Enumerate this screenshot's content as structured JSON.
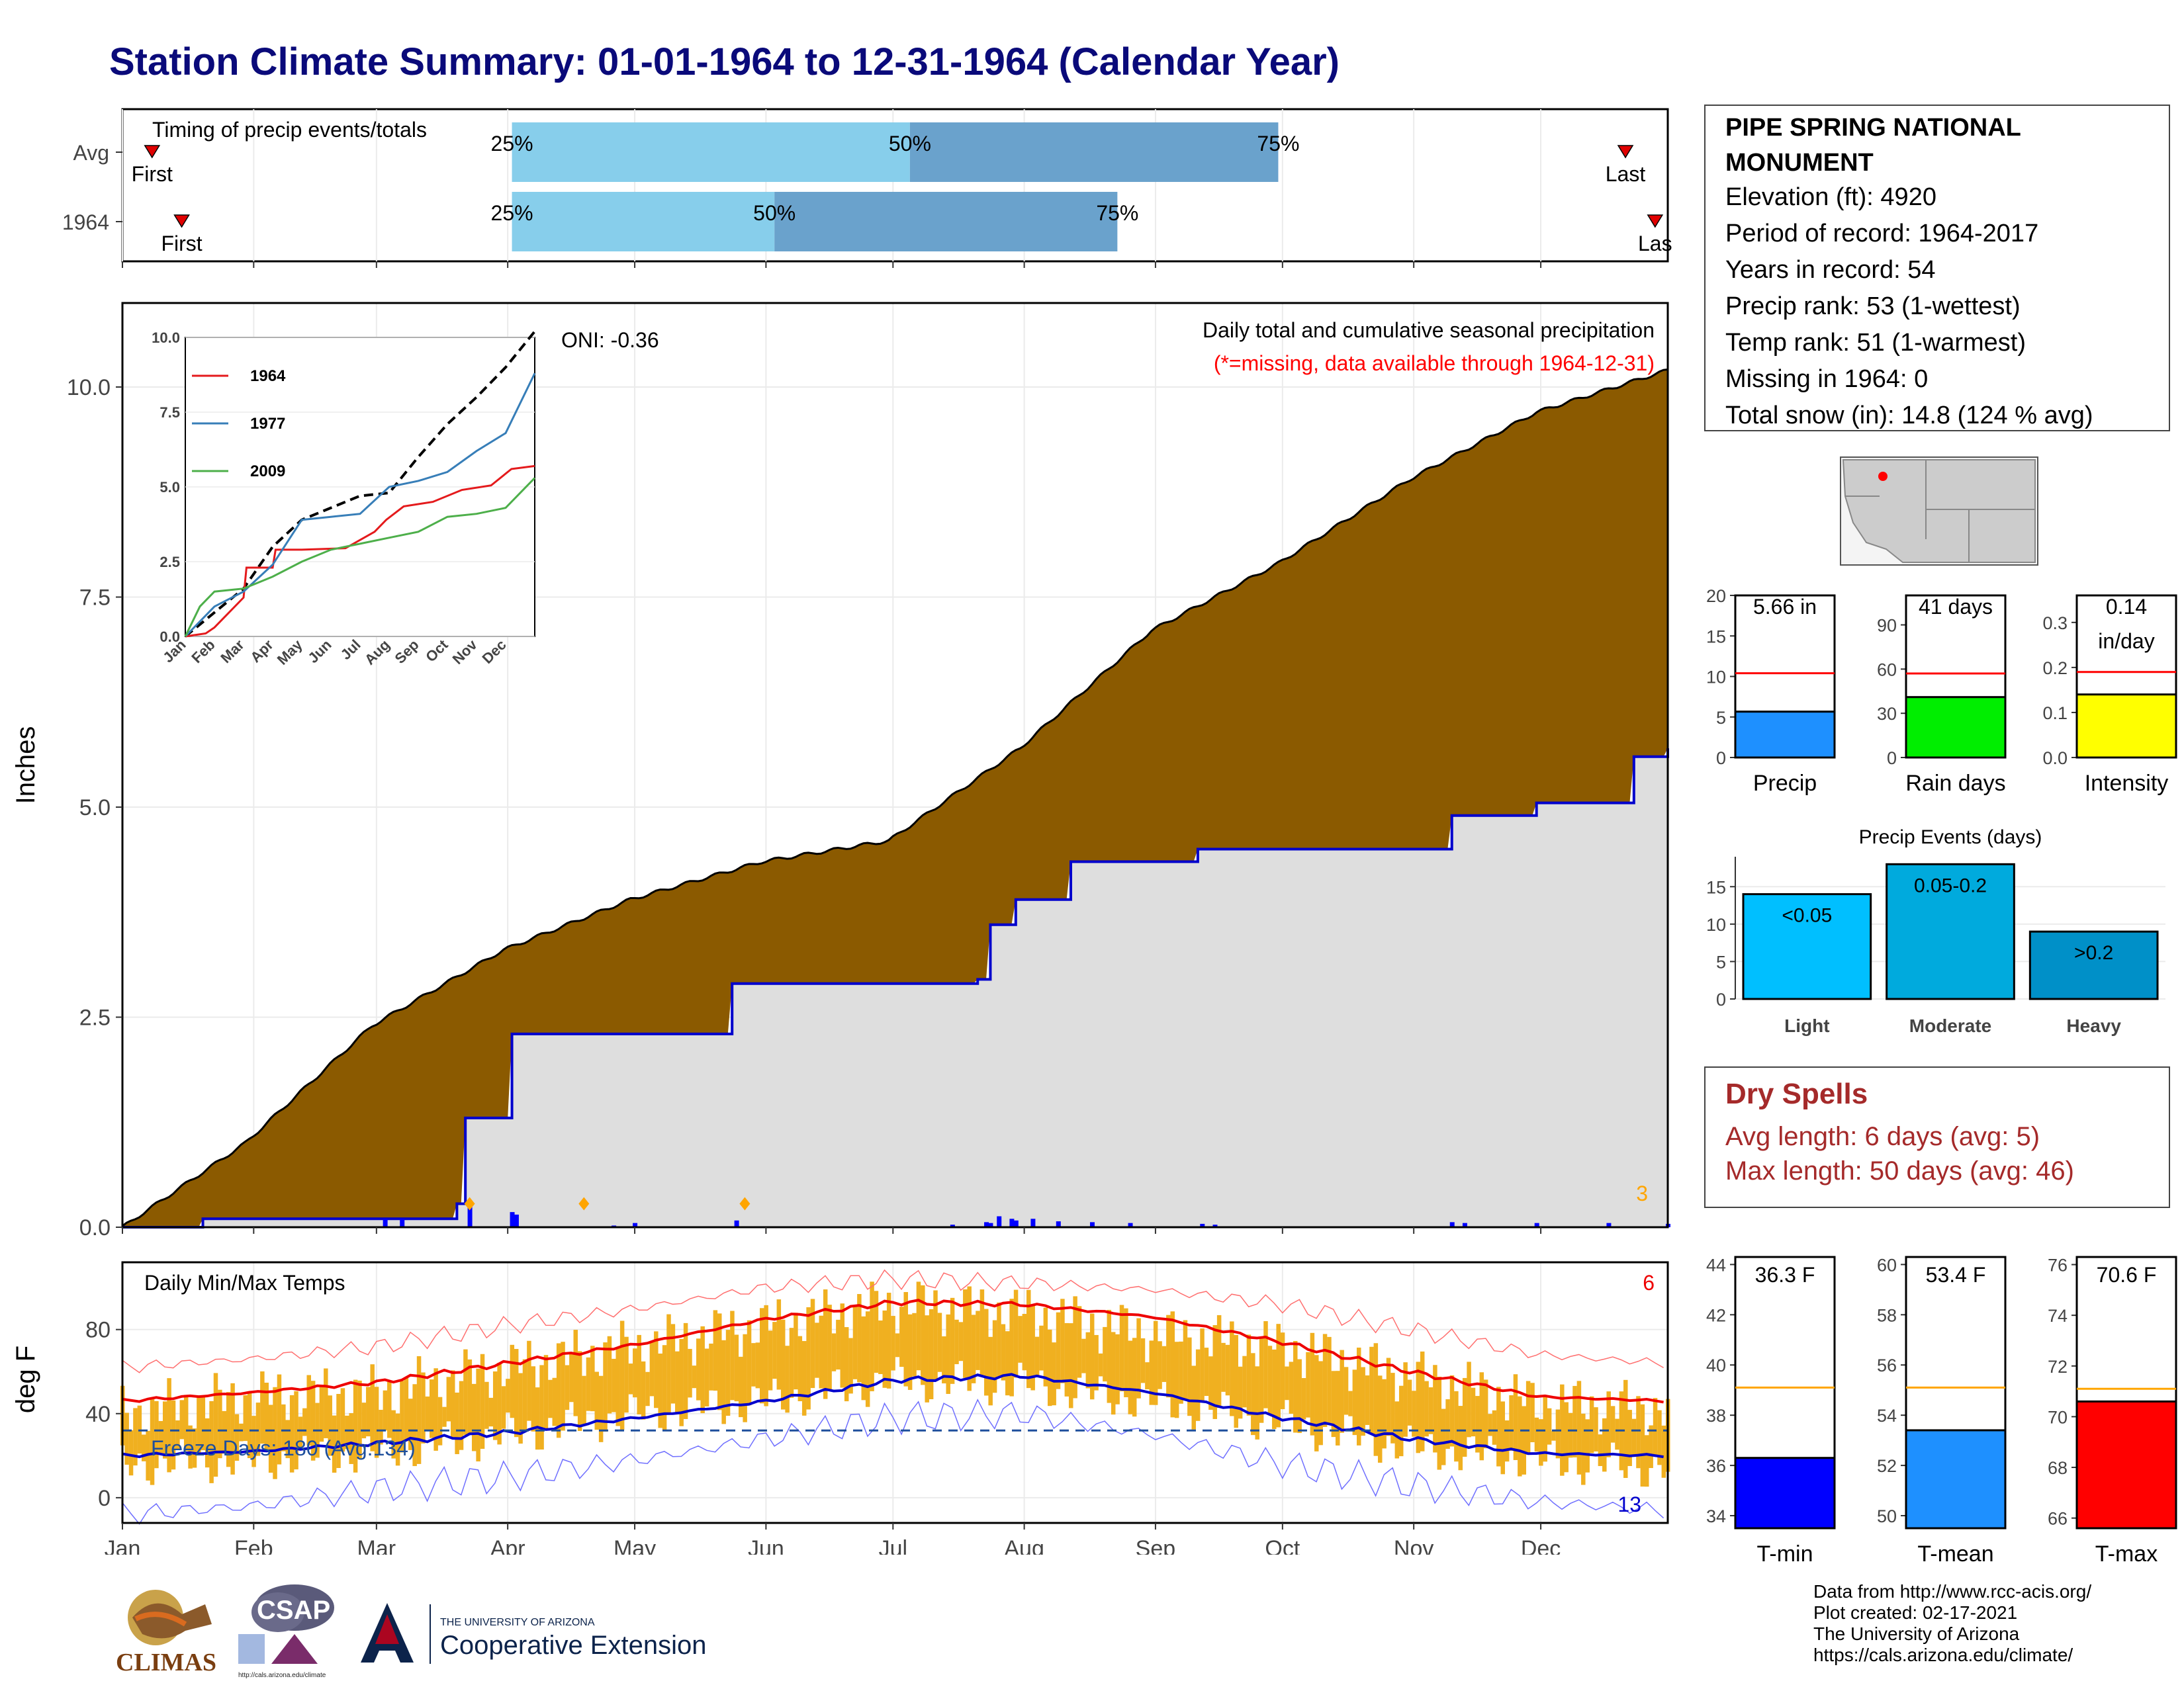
{
  "header": {
    "title": "Station Climate Summary: 01-01-1964 to 12-31-1964 (Calendar Year)"
  },
  "timing_panel": {
    "caption": "Timing of precip events/totals",
    "rows": [
      {
        "label": "Avg",
        "first_label": "First",
        "last_label": "Last"
      },
      {
        "label": "1964",
        "first_label": "First",
        "last_label": "Las"
      }
    ],
    "chart_data": {
      "type": "bar",
      "subtitle": "Timing of precip events/totals",
      "categories": [
        "Avg",
        "1964"
      ],
      "day_of_year": {
        "Avg": {
          "first": 8,
          "p25": 93,
          "p50": 187,
          "p75": 274,
          "last": 356
        },
        "1964": {
          "first": 15,
          "p25": 93,
          "p50": 155,
          "p75": 236,
          "last": 363
        }
      },
      "percent_labels": [
        "25%",
        "50%",
        "75%"
      ],
      "colors": {
        "first_half": "#87ceeb",
        "second_half": "#6aa2cc",
        "marker": "#e00000"
      }
    }
  },
  "precip_panel": {
    "ylabel": "Inches",
    "oni": "ONI: -0.36",
    "legend_title": "Daily total and cumulative seasonal precipitation",
    "legend_note": "(*=missing, data available through 1964-12-31)",
    "corner_count": "3",
    "y_ticks": [
      "0.0",
      "2.5",
      "5.0",
      "7.5",
      "10.0"
    ],
    "chart_data": {
      "type": "area",
      "ylabel": "Inches",
      "ylim": [
        0,
        11
      ],
      "series": [
        {
          "name": "cumulative max (by day of year)",
          "x": [
            1,
            30,
            60,
            91,
            121,
            152,
            182,
            213,
            244,
            274,
            305,
            335,
            366
          ],
          "values": [
            0,
            1.0,
            2.4,
            3.3,
            3.9,
            4.35,
            4.6,
            5.7,
            7.1,
            7.9,
            8.9,
            9.7,
            10.2
          ]
        },
        {
          "name": "cumulative 1964",
          "x": [
            1,
            20,
            80,
            82,
            92,
            93,
            145,
            146,
            203,
            206,
            212,
            225,
            255,
            315,
            335,
            358,
            366
          ],
          "values": [
            0,
            0.1,
            0.28,
            1.3,
            1.3,
            2.3,
            2.9,
            2.9,
            2.95,
            3.6,
            3.9,
            4.35,
            4.5,
            4.9,
            5.05,
            5.6,
            5.7
          ]
        }
      ],
      "daily_bars": {
        "x": [
          63,
          67,
          83,
          93,
          94,
          117,
          122,
          146,
          197,
          205,
          206,
          208,
          211,
          212,
          216,
          222,
          230,
          239,
          256,
          259,
          315,
          318,
          335,
          352,
          366
        ],
        "values": [
          0.1,
          0.1,
          0.3,
          0.18,
          0.15,
          0.02,
          0.05,
          0.08,
          0.03,
          0.06,
          0.05,
          0.13,
          0.1,
          0.08,
          0.1,
          0.07,
          0.06,
          0.05,
          0.04,
          0.03,
          0.06,
          0.05,
          0.05,
          0.05,
          0.04
        ]
      },
      "colors": {
        "band": "#8b5a00",
        "ytd": "#dedede",
        "ytd_line": "#0000cc",
        "bars": "#0000ff"
      }
    },
    "inset": {
      "legend": [
        "1964",
        "1977",
        "2009"
      ],
      "y_ticks": [
        "0.0",
        "2.5",
        "5.0",
        "7.5",
        "10.0"
      ],
      "x_ticks": [
        "Jan",
        "Feb",
        "Mar",
        "Apr",
        "May",
        "Jun",
        "Jul",
        "Aug",
        "Sep",
        "Oct",
        "Nov",
        "Dec"
      ],
      "chart_data": {
        "type": "line",
        "ylim": [
          0,
          10
        ],
        "series": [
          {
            "name": "avg",
            "style": "dashed",
            "months": [
              0,
              1,
              2,
              3,
              4,
              5,
              6,
              7,
              8,
              9,
              10,
              11,
              12
            ],
            "values": [
              0,
              0.8,
              1.6,
              3.0,
              3.9,
              4.3,
              4.7,
              4.8,
              6.0,
              7.1,
              8.0,
              9.0,
              10.2
            ]
          },
          {
            "name": "1964",
            "months": [
              0,
              0.7,
              1.0,
              2.0,
              2.1,
              3.0,
              3.1,
              4.0,
              5.5,
              6.5,
              6.9,
              7.5,
              8.5,
              9.5,
              10.5,
              11.2,
              12
            ],
            "values": [
              0,
              0.1,
              0.3,
              1.3,
              2.3,
              2.3,
              2.9,
              2.9,
              2.95,
              3.5,
              3.9,
              4.35,
              4.5,
              4.9,
              5.05,
              5.6,
              5.7
            ]
          },
          {
            "name": "1977",
            "months": [
              0,
              0.5,
              1.0,
              2.0,
              3.0,
              4.0,
              5.0,
              6.0,
              7.0,
              8.0,
              9.0,
              10.0,
              11.0,
              12
            ],
            "values": [
              0,
              0.5,
              1.0,
              1.5,
              2.4,
              3.9,
              4.0,
              4.1,
              5.0,
              5.2,
              5.5,
              6.2,
              6.8,
              8.8
            ]
          },
          {
            "name": "2009",
            "months": [
              0,
              0.5,
              1.0,
              2.0,
              3.0,
              4.0,
              5.0,
              6.0,
              7.0,
              8.0,
              9.0,
              10.0,
              11.0,
              12
            ],
            "values": [
              0,
              1.0,
              1.5,
              1.6,
              2.0,
              2.5,
              2.9,
              3.1,
              3.3,
              3.5,
              4.0,
              4.1,
              4.3,
              5.3
            ]
          }
        ],
        "colors": {
          "1964": "#e41a1c",
          "1977": "#377eb8",
          "2009": "#4daf4a",
          "avg": "#000000"
        }
      }
    }
  },
  "temp_panel": {
    "ylabel": "deg F",
    "caption": "Daily Min/Max Temps",
    "freeze_days": "Freeze Days: 180 (Avg:134)",
    "count_high": "6",
    "count_low": "13",
    "y_ticks": [
      "0",
      "40",
      "80"
    ],
    "chart_data": {
      "type": "line",
      "ylabel": "deg F",
      "ylim": [
        -12,
        112
      ],
      "months": [
        0,
        1,
        2,
        3,
        4,
        5,
        6,
        7,
        8,
        9,
        10,
        11,
        12
      ],
      "series": [
        {
          "name": "record high",
          "values": [
            62,
            66,
            72,
            82,
            90,
            100,
            104,
            102,
            99,
            92,
            80,
            68,
            64
          ]
        },
        {
          "name": "normal max",
          "values": [
            46,
            50,
            55,
            64,
            73,
            85,
            93,
            92,
            86,
            74,
            60,
            48,
            46
          ]
        },
        {
          "name": "normal min",
          "values": [
            20,
            22,
            26,
            31,
            38,
            46,
            56,
            58,
            50,
            38,
            28,
            21,
            20
          ]
        },
        {
          "name": "record low",
          "values": [
            -8,
            -4,
            4,
            10,
            18,
            28,
            38,
            40,
            30,
            16,
            6,
            -2,
            -6
          ]
        },
        {
          "name": "1964 max",
          "values": [
            40,
            48,
            50,
            62,
            72,
            82,
            92,
            88,
            78,
            72,
            58,
            45,
            42
          ]
        },
        {
          "name": "1964 min",
          "values": [
            16,
            18,
            22,
            30,
            40,
            46,
            56,
            54,
            46,
            36,
            24,
            18,
            14
          ]
        }
      ],
      "freeze_line": 32,
      "colors": {
        "bars": "#f0b020",
        "max": "#ee0000",
        "min": "#0000cc",
        "freeze": "#1e4f9c"
      }
    }
  },
  "x_axis": {
    "months": [
      "Jan",
      "Feb",
      "Mar",
      "Apr",
      "May",
      "Jun",
      "Jul",
      "Aug",
      "Sep",
      "Oct",
      "Nov",
      "Dec"
    ]
  },
  "station": {
    "name_line1": "PIPE SPRING NATIONAL",
    "name_line2": "MONUMENT",
    "elevation": "Elevation (ft): 4920",
    "period": "Period of record: 1964-2017",
    "years": "Years in record: 54",
    "precip_rank": "Precip rank: 53 (1-wettest)",
    "temp_rank": "Temp rank: 51 (1-warmest)",
    "missing": "Missing in 1964: 0",
    "snow": "Total snow (in): 14.8 (124 % avg)"
  },
  "mini_bars": [
    {
      "label": "Precip",
      "value_text": "5.66 in",
      "value": 5.66,
      "avg": 10.4,
      "ymax": 20,
      "ticks": [
        "0",
        "5",
        "10",
        "15",
        "20"
      ],
      "color": "#1e90ff"
    },
    {
      "label": "Rain days",
      "value_text": "41 days",
      "value": 41,
      "avg": 57,
      "ymax": 110,
      "ticks": [
        "0",
        "30",
        "60",
        "90"
      ],
      "color": "#00ee00"
    },
    {
      "label": "Intensity",
      "value_text": "0.14",
      "value_text2": "in/day",
      "value": 0.14,
      "avg": 0.19,
      "ymax": 0.36,
      "ticks": [
        "0.0",
        "0.1",
        "0.2",
        "0.3"
      ],
      "color": "#ffff00"
    }
  ],
  "precip_events": {
    "title": "Precip Events (days)",
    "y_ticks": [
      "0",
      "5",
      "10",
      "15"
    ],
    "chart_data": {
      "type": "bar",
      "title": "Precip Events (days)",
      "categories": [
        "Light",
        "Moderate",
        "Heavy"
      ],
      "values": [
        14,
        18,
        9
      ],
      "bar_labels": [
        "<0.05",
        "0.05-0.2",
        ">0.2"
      ],
      "ylim": [
        0,
        19
      ],
      "colors": [
        "#00bfff",
        "#00aadd",
        "#0090c8"
      ]
    }
  },
  "dry_spells": {
    "title": "Dry Spells",
    "avg_length": "Avg length: 6 days (avg: 5)",
    "max_length": "Max length: 50 days (avg: 46)"
  },
  "temp_bars": [
    {
      "label": "T-min",
      "value_text": "36.3 F",
      "value": 36.3,
      "avg": 39.1,
      "ymin": 33.5,
      "ymax": 44.3,
      "ticks": [
        "34",
        "36",
        "38",
        "40",
        "42",
        "44"
      ],
      "color": "#0000ff"
    },
    {
      "label": "T-mean",
      "value_text": "53.4 F",
      "value": 53.4,
      "avg": 55.1,
      "ymin": 49.5,
      "ymax": 60.3,
      "ticks": [
        "50",
        "52",
        "54",
        "56",
        "58",
        "60"
      ],
      "color": "#1e90ff"
    },
    {
      "label": "T-max",
      "value_text": "70.6 F",
      "value": 70.6,
      "avg": 71.1,
      "ymin": 65.6,
      "ymax": 76.3,
      "ticks": [
        "66",
        "68",
        "70",
        "72",
        "74",
        "76"
      ],
      "color": "#ff0000"
    }
  ],
  "footer": {
    "line1": "Data from http://www.rcc-acis.org/",
    "line2": "Plot created: 02-17-2021",
    "line3": "The University of Arizona",
    "line4": "https://cals.arizona.edu/climate/",
    "logo1": "CLIMAS",
    "logo2": "CSAP",
    "logo2_url": "http://cals.arizona.edu/climate",
    "logo3_top": "THE UNIVERSITY OF ARIZONA",
    "logo3_bottom": "Cooperative Extension"
  }
}
